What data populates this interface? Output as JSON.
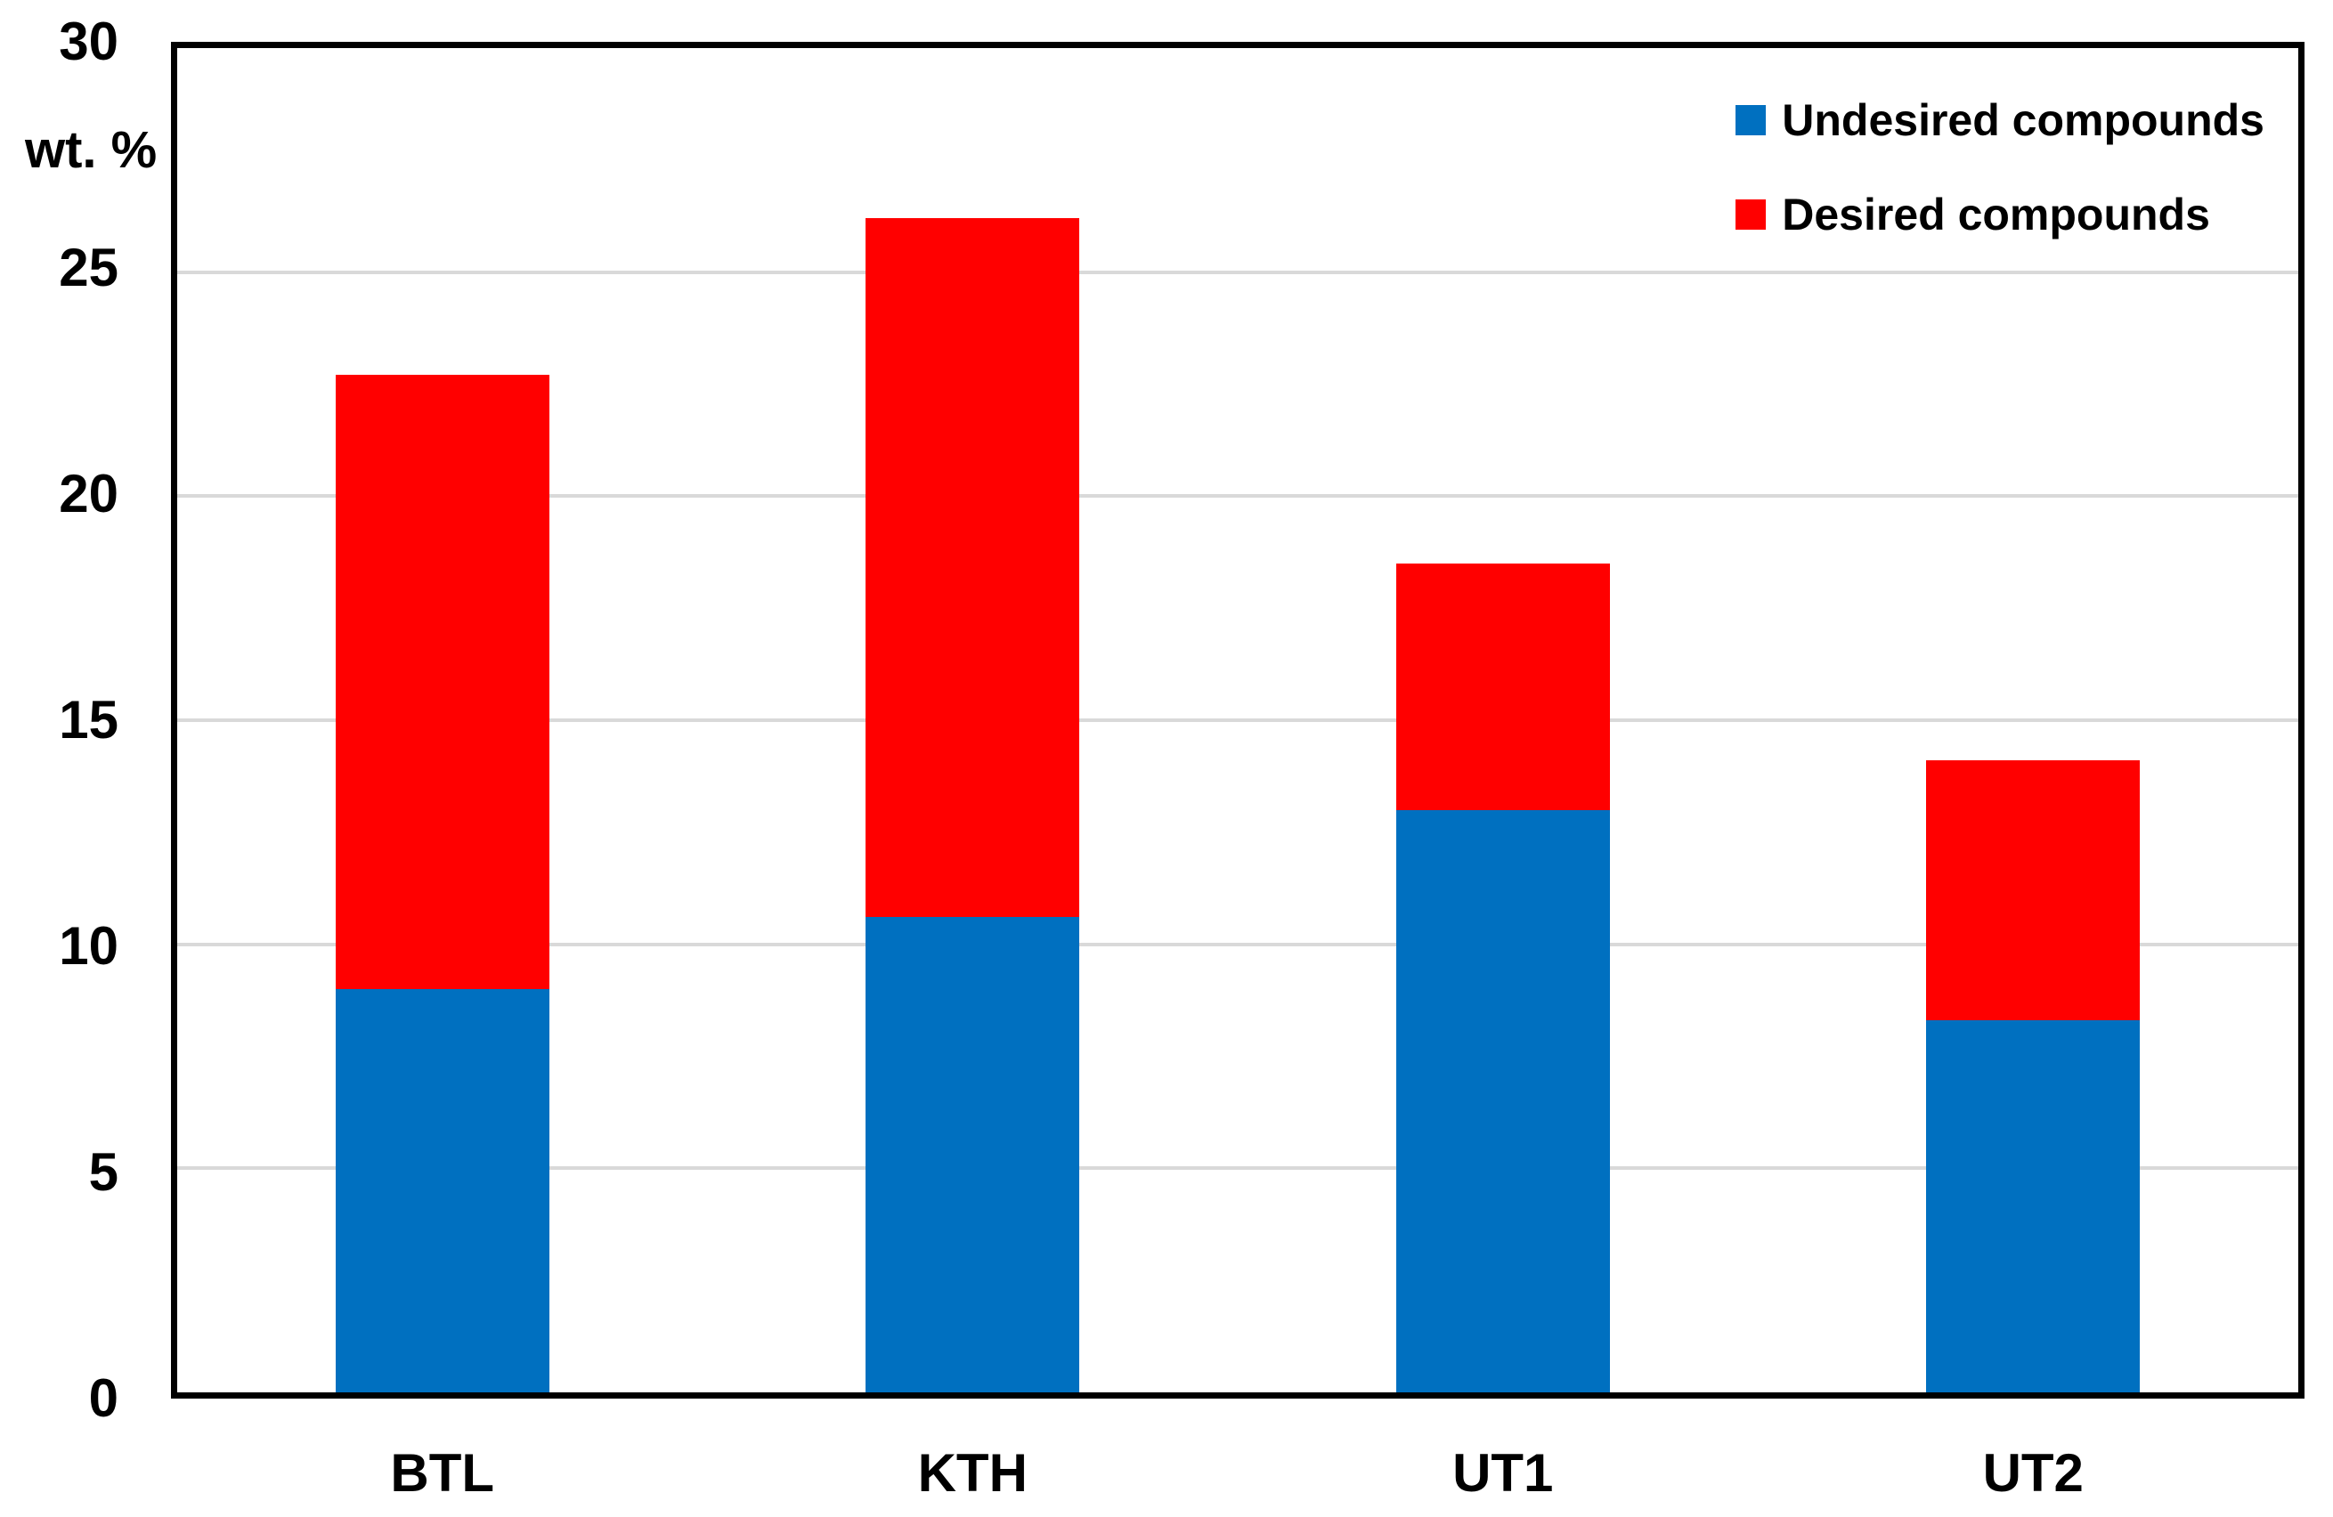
{
  "figure": {
    "background": "#FFFFFF",
    "frame_color": "#000000"
  },
  "chart_data": {
    "type": "bar",
    "stacked": true,
    "title": "",
    "xlabel": "",
    "ylabel": "wt. %",
    "ylim": [
      0,
      30
    ],
    "yticks": [
      0,
      5,
      10,
      15,
      20,
      25,
      30
    ],
    "grid": true,
    "gridline_color": "#D9D9D9",
    "categories": [
      "BTL",
      "KTH",
      "UT1",
      "UT2"
    ],
    "series": [
      {
        "name": "Undesired compounds",
        "color": "#0070C0",
        "values": [
          9.0,
          10.6,
          13.0,
          8.3
        ]
      },
      {
        "name": "Desired compounds",
        "color": "#FF0000",
        "values": [
          13.7,
          15.6,
          5.5,
          5.8
        ]
      }
    ],
    "legend_position": "top-right"
  }
}
